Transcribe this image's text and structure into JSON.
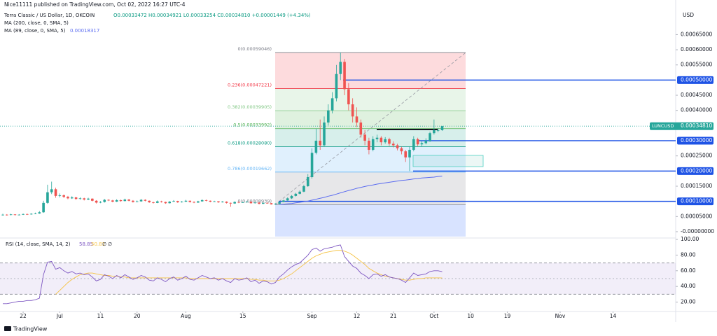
{
  "header": {
    "published": "Nice11111 published on TradingView.com, Oct 02, 2022 16:27 UTC-4",
    "symbol": "Terra Classic / US Dollar, 1D, OKCOIN",
    "ohlc": "O0.00033472 H0.00034921 L0.00033254 C0.00034810 +0.00001449 (+4.34%)",
    "ma200": "MA (200, close, 0, SMA, 5)"
  },
  "chart_data": {
    "type": "candlestick",
    "currency": "USD",
    "up_color": "#26a69a",
    "down_color": "#ef5350",
    "ylim": [
      -1.62e-05,
      0.000741
    ],
    "yticks": [
      {
        "value": 0.00065,
        "label": "0.00065000"
      },
      {
        "value": 0.0006,
        "label": "0.00060000"
      },
      {
        "value": 0.00055,
        "label": "0.00055000"
      },
      {
        "value": 0.00045,
        "label": "0.00045000"
      },
      {
        "value": 0.0004,
        "label": "0.00040000"
      },
      {
        "value": 0.00025,
        "label": "0.00025000"
      },
      {
        "value": 0.00015,
        "label": "0.00015000"
      },
      {
        "value": 5e-05,
        "label": "0.00005000"
      },
      {
        "value": 0,
        "label": "-0.00000000"
      }
    ],
    "xlim": [
      -0.69,
      165.4
    ],
    "xticks": [
      {
        "value": 5,
        "label": "22"
      },
      {
        "value": 14,
        "label": "Jul"
      },
      {
        "value": 24,
        "label": "11"
      },
      {
        "value": 33,
        "label": "20"
      },
      {
        "value": 45,
        "label": "Aug"
      },
      {
        "value": 59,
        "label": "15"
      },
      {
        "value": 76,
        "label": "Sep"
      },
      {
        "value": 87,
        "label": "12"
      },
      {
        "value": 96,
        "label": "21"
      },
      {
        "value": 106,
        "label": "Oct"
      },
      {
        "value": 115,
        "label": "10"
      },
      {
        "value": 124,
        "label": "19"
      },
      {
        "value": 137,
        "label": "Nov"
      },
      {
        "value": 150,
        "label": "14"
      }
    ],
    "candles": [
      [
        5.5e-05,
        5.9e-05,
        5.3e-05,
        5.6e-05
      ],
      [
        5.6e-05,
        5.8e-05,
        5.3e-05,
        5.5e-05
      ],
      [
        5.5e-05,
        5.9e-05,
        5.4e-05,
        5.7e-05
      ],
      [
        5.7e-05,
        5.8e-05,
        5.3e-05,
        5.5e-05
      ],
      [
        5.5e-05,
        5.8e-05,
        5.4e-05,
        5.6e-05
      ],
      [
        5.6e-05,
        6e-05,
        5.5e-05,
        5.8e-05
      ],
      [
        5.8e-05,
        6e-05,
        5.5e-05,
        5.7e-05
      ],
      [
        5.7e-05,
        6.1e-05,
        5.6e-05,
        5.9e-05
      ],
      [
        5.9e-05,
        6.3e-05,
        5.8e-05,
        6e-05
      ],
      [
        6e-05,
        6.8e-05,
        5.9e-05,
        6.4e-05
      ],
      [
        6.4e-05,
        0.000102,
        6.2e-05,
        9.5e-05
      ],
      [
        9.5e-05,
        0.000155,
        9.2e-05,
        0.00013
      ],
      [
        0.00013,
        0.000165,
        0.000124,
        0.00014
      ],
      [
        0.00014,
        0.000145,
        0.000112,
        0.000118
      ],
      [
        0.000118,
        0.000126,
        0.000113,
        0.00012
      ],
      [
        0.00012,
        0.000123,
        0.000111,
        0.000115
      ],
      [
        0.000115,
        0.000118,
        0.000107,
        0.00011
      ],
      [
        0.00011,
        0.000117,
        0.000108,
        0.000113
      ],
      [
        0.000113,
        0.000115,
        0.000105,
        0.000108
      ],
      [
        0.000108,
        0.000113,
        0.000106,
        0.00011
      ],
      [
        0.00011,
        0.000112,
        0.000103,
        0.000106
      ],
      [
        0.000106,
        0.000112,
        0.000104,
        0.000109
      ],
      [
        0.000109,
        0.00011,
        0.0001,
        0.000102
      ],
      [
        0.000102,
        0.000104,
        9.3e-05,
        9.6e-05
      ],
      [
        9.6e-05,
        0.000101,
        9.4e-05,
        9.8e-05
      ],
      [
        9.8e-05,
        0.000108,
        9.6e-05,
        0.000105
      ],
      [
        0.000105,
        0.000107,
        0.000101,
        0.000103
      ],
      [
        0.000103,
        0.000105,
        9.7e-05,
        9.9e-05
      ],
      [
        9.9e-05,
        0.000107,
        9.8e-05,
        0.000104
      ],
      [
        0.000104,
        0.000106,
        9.9e-05,
        0.000101
      ],
      [
        0.000101,
        0.000109,
        0.0001,
        0.000106
      ],
      [
        0.000106,
        0.000108,
        0.0001,
        0.000102
      ],
      [
        0.000102,
        0.000104,
        9.6e-05,
        9.8e-05
      ],
      [
        9.8e-05,
        0.000103,
        9.7e-05,
        0.0001
      ],
      [
        0.0001,
        0.000108,
        9.9e-05,
        0.000105
      ],
      [
        0.000105,
        0.000107,
        0.0001,
        0.000102
      ],
      [
        0.000102,
        0.000103,
        9.5e-05,
        9.7e-05
      ],
      [
        9.7e-05,
        9.9e-05,
        9.3e-05,
        9.5e-05
      ],
      [
        9.5e-05,
        0.000103,
        9.4e-05,
        0.0001
      ],
      [
        0.0001,
        0.000102,
        9.6e-05,
        9.8e-05
      ],
      [
        9.8e-05,
        9.9e-05,
        9.2e-05,
        9.4e-05
      ],
      [
        9.4e-05,
        0.000101,
        9.3e-05,
        9.9e-05
      ],
      [
        9.9e-05,
        0.000104,
        9.8e-05,
        0.000101
      ],
      [
        0.000101,
        0.000102,
        9.5e-05,
        9.7e-05
      ],
      [
        9.7e-05,
        0.000101,
        9.6e-05,
        9.9e-05
      ],
      [
        9.9e-05,
        0.000105,
        9.8e-05,
        0.000102
      ],
      [
        0.000102,
        0.000103,
        9.6e-05,
        9.8e-05
      ],
      [
        9.8e-05,
        0.0001,
        9.4e-05,
        9.6e-05
      ],
      [
        9.6e-05,
        0.000102,
        9.5e-05,
        0.0001
      ],
      [
        0.0001,
        0.000107,
        9.9e-05,
        0.000104
      ],
      [
        0.000104,
        0.000106,
        0.0001,
        0.000102
      ],
      [
        0.000102,
        0.000103,
        9.7e-05,
        9.9e-05
      ],
      [
        9.9e-05,
        0.000102,
        9.8e-05,
        0.0001
      ],
      [
        0.0001,
        0.000101,
        9.5e-05,
        9.7e-05
      ],
      [
        9.7e-05,
        0.000101,
        9.6e-05,
        9.9e-05
      ],
      [
        9.9e-05,
        0.0001,
        9.3e-05,
        9.5e-05
      ],
      [
        9.5e-05,
        9.6e-05,
        8.2e-05,
        9.3e-05
      ],
      [
        9.3e-05,
        0.0001,
        9.2e-05,
        9.8e-05
      ],
      [
        9.8e-05,
        9.9e-05,
        9.4e-05,
        9.6e-05
      ],
      [
        9.6e-05,
        9.9e-05,
        9.5e-05,
        9.7e-05
      ],
      [
        9.7e-05,
        0.000101,
        9.6e-05,
        9.9e-05
      ],
      [
        9.9e-05,
        0.0001,
        9.2e-05,
        9.4e-05
      ],
      [
        9.4e-05,
        9.8e-05,
        9.3e-05,
        9.6e-05
      ],
      [
        9.6e-05,
        9.7e-05,
        9e-05,
        9.2e-05
      ],
      [
        9.2e-05,
        9.7e-05,
        9.1e-05,
        9.5e-05
      ],
      [
        9.5e-05,
        9.6e-05,
        9.2e-05,
        9.4e-05
      ],
      [
        9.4e-05,
        9.5e-05,
        8.95e-05,
        9e-05
      ],
      [
        9e-05,
        9.4e-05,
        8.939e-05,
        9.2e-05
      ],
      [
        9.2e-05,
        0.0001,
        9.1e-05,
        9.8e-05
      ],
      [
        9.8e-05,
        0.000105,
        9.7e-05,
        0.000103
      ],
      [
        0.000103,
        0.000113,
        0.000102,
        0.00011
      ],
      [
        0.00011,
        0.000121,
        0.000108,
        0.000118
      ],
      [
        0.000118,
        0.000128,
        0.000116,
        0.000125
      ],
      [
        0.000125,
        0.000136,
        0.000123,
        0.000132
      ],
      [
        0.000132,
        0.000155,
        0.00013,
        0.00015
      ],
      [
        0.00015,
        0.00019,
        0.000148,
        0.00018
      ],
      [
        0.00018,
        0.000275,
        0.000175,
        0.00026
      ],
      [
        0.00026,
        0.00034,
        0.000255,
        0.0003
      ],
      [
        0.0003,
        0.00037,
        0.00027,
        0.000285
      ],
      [
        0.000285,
        0.00038,
        0.00028,
        0.00036
      ],
      [
        0.00036,
        0.00042,
        0.00035,
        0.0004
      ],
      [
        0.0004,
        0.00046,
        0.00039,
        0.00044
      ],
      [
        0.00044,
        0.00055,
        0.00043,
        0.00052
      ],
      [
        0.00052,
        0.00059046,
        0.0005,
        0.00056
      ],
      [
        0.00056,
        0.00057,
        0.00045,
        0.00047
      ],
      [
        0.00047,
        0.00049,
        0.0004,
        0.00042
      ],
      [
        0.00042,
        0.00044,
        0.00036,
        0.00038
      ],
      [
        0.00038,
        0.00041,
        0.000345,
        0.00036
      ],
      [
        0.00036,
        0.00037,
        0.00031,
        0.00032
      ],
      [
        0.00032,
        0.000335,
        0.000285,
        0.0003
      ],
      [
        0.0003,
        0.00031,
        0.000255,
        0.00027
      ],
      [
        0.00027,
        0.000315,
        0.000265,
        0.000305
      ],
      [
        0.000305,
        0.00032,
        0.000295,
        0.00031
      ],
      [
        0.00031,
        0.000315,
        0.000285,
        0.000295
      ],
      [
        0.000295,
        0.000312,
        0.00029,
        0.000305
      ],
      [
        0.000305,
        0.00031,
        0.000283,
        0.00029
      ],
      [
        0.00029,
        0.000298,
        0.000278,
        0.000285
      ],
      [
        0.000285,
        0.00029,
        0.000268,
        0.000275
      ],
      [
        0.000275,
        0.00028,
        0.000255,
        0.000265
      ],
      [
        0.000265,
        0.00027,
        0.00023,
        0.000245
      ],
      [
        0.000245,
        0.00028,
        0.0002,
        0.00027
      ],
      [
        0.00027,
        0.000315,
        0.000265,
        0.000305
      ],
      [
        0.000305,
        0.00031,
        0.000282,
        0.000288
      ],
      [
        0.000288,
        0.000298,
        0.00028,
        0.000292
      ],
      [
        0.000292,
        0.000308,
        0.000288,
        0.0003
      ],
      [
        0.0003,
        0.00033,
        0.000296,
        0.000325
      ],
      [
        0.000325,
        0.00037,
        0.00032,
        0.000335
      ],
      [
        0.000333,
        0.000342,
        0.000328,
        0.00033472
      ],
      [
        0.00033472,
        0.00034921,
        0.00033254,
        0.0003481
      ]
    ],
    "series": [
      {
        "name": "MA (89, close, 0, SMA, 5)",
        "legend_value": "0.00018317",
        "color": "#5b6cf0",
        "values": [
          null,
          null,
          null,
          null,
          null,
          null,
          null,
          null,
          null,
          null,
          null,
          null,
          null,
          null,
          null,
          null,
          null,
          null,
          null,
          null,
          null,
          null,
          null,
          null,
          null,
          null,
          null,
          null,
          null,
          null,
          null,
          null,
          null,
          null,
          null,
          null,
          null,
          null,
          null,
          null,
          null,
          null,
          null,
          null,
          null,
          null,
          null,
          null,
          null,
          null,
          null,
          null,
          null,
          null,
          null,
          null,
          null,
          null,
          null,
          null,
          null,
          null,
          null,
          null,
          null,
          null,
          null,
          null,
          9e-05,
          9.1e-05,
          9.2e-05,
          9.3e-05,
          9.5e-05,
          9.7e-05,
          9.9e-05,
          0.000101,
          0.000104,
          0.000107,
          0.00011,
          0.000113,
          0.000117,
          0.00012,
          0.000124,
          0.000128,
          0.000132,
          0.000136,
          0.000139,
          0.000143,
          0.000146,
          0.000149,
          0.000152,
          0.000154,
          0.000157,
          0.000159,
          0.000161,
          0.000163,
          0.000165,
          0.000167,
          0.000169,
          0.00017,
          0.000172,
          0.000174,
          0.000175,
          0.000177,
          0.000178,
          0.000179,
          0.00018,
          0.000182,
          0.00018317
        ]
      }
    ],
    "fib": [
      {
        "label": "0(0.00059046)",
        "value": 0.00059046,
        "color": "#787b86"
      },
      {
        "label": "0.236(0.00047221)",
        "value": 0.00047221,
        "color": "#f23645"
      },
      {
        "label": "0.382(0.00039905)",
        "value": 0.00039905,
        "color": "#81c784"
      },
      {
        "label": "0.5(0.00033992)",
        "value": 0.00033992,
        "color": "#4caf50"
      },
      {
        "label": "0.618(0.00028080)",
        "value": 0.0002808,
        "color": "#089981"
      },
      {
        "label": "0.786(0.00019662)",
        "value": 0.00019662,
        "color": "#64b5f6"
      },
      {
        "label": "0(0.00008939)",
        "value": 8.939e-05,
        "color": "#787b86"
      }
    ],
    "levels": [
      {
        "value": 0.0005,
        "label": "0.00050000"
      },
      {
        "value": 0.0003,
        "label": "0.00030000"
      },
      {
        "value": 0.0002,
        "label": "0.00020000"
      },
      {
        "value": 0.0001,
        "label": "0.00010000"
      }
    ],
    "level_color": "#1e53e5",
    "last_price": {
      "symbol": "LUNCUSD",
      "value": 0.0003481,
      "label": "0.00034810",
      "color": "#26a69a"
    },
    "rsi": {
      "legend": "RSI (14, close, SMA, 14, 2)",
      "value_label": "58.85",
      "ma_label": "50.81",
      "extras": [
        "∅",
        "∅"
      ],
      "color": "#7e57c2",
      "ma_color": "#f5c242",
      "ylim": [
        8,
        101.8
      ],
      "yticks": [
        {
          "value": 100,
          "label": "100.00"
        },
        {
          "value": 80,
          "label": "80.00"
        },
        {
          "value": 60,
          "label": "60.00"
        },
        {
          "value": 40,
          "label": "40.00"
        },
        {
          "value": 20,
          "label": "20.00"
        }
      ],
      "values": [
        18,
        18,
        19,
        20,
        21,
        21,
        22,
        22,
        23,
        25,
        55,
        71,
        72,
        62,
        64,
        60,
        57,
        59,
        56,
        57,
        55,
        56,
        52,
        47,
        49,
        55,
        53,
        50,
        54,
        51,
        55,
        52,
        49,
        51,
        54,
        52,
        48,
        47,
        51,
        49,
        46,
        50,
        52,
        48,
        50,
        53,
        49,
        48,
        51,
        54,
        52,
        50,
        51,
        48,
        50,
        47,
        45,
        50,
        48,
        49,
        51,
        46,
        48,
        44,
        47,
        46,
        43,
        45,
        52,
        56,
        61,
        65,
        68,
        70,
        75,
        80,
        87,
        89,
        85,
        88,
        89,
        90,
        92,
        93,
        78,
        72,
        66,
        63,
        57,
        54,
        50,
        55,
        56,
        53,
        55,
        52,
        51,
        50,
        48,
        45,
        51,
        57,
        54,
        55,
        56,
        59,
        60,
        60,
        58.85
      ],
      "ma": [
        null,
        null,
        null,
        null,
        null,
        null,
        null,
        null,
        null,
        null,
        null,
        null,
        null,
        30,
        35,
        40,
        45,
        49,
        52,
        55,
        56,
        57,
        57,
        56,
        55,
        54,
        54,
        53,
        53,
        52,
        52,
        51,
        51,
        51,
        51,
        51,
        51,
        51,
        51,
        51,
        51,
        51,
        51,
        51,
        51,
        51,
        50,
        50,
        50,
        50,
        50,
        50,
        50,
        50,
        50,
        50,
        50,
        50,
        50,
        50,
        50,
        49,
        49,
        48,
        48,
        47,
        47,
        47,
        48,
        50,
        53,
        56,
        60,
        64,
        68,
        72,
        76,
        79,
        81,
        83,
        84,
        85,
        86,
        86,
        85,
        83,
        80,
        76,
        72,
        68,
        63,
        60,
        57,
        55,
        53,
        52,
        51,
        50,
        49,
        48,
        48,
        49,
        50,
        50,
        51,
        51,
        51,
        51,
        50.81
      ]
    }
  },
  "footer": {
    "brand": "TradingView"
  }
}
